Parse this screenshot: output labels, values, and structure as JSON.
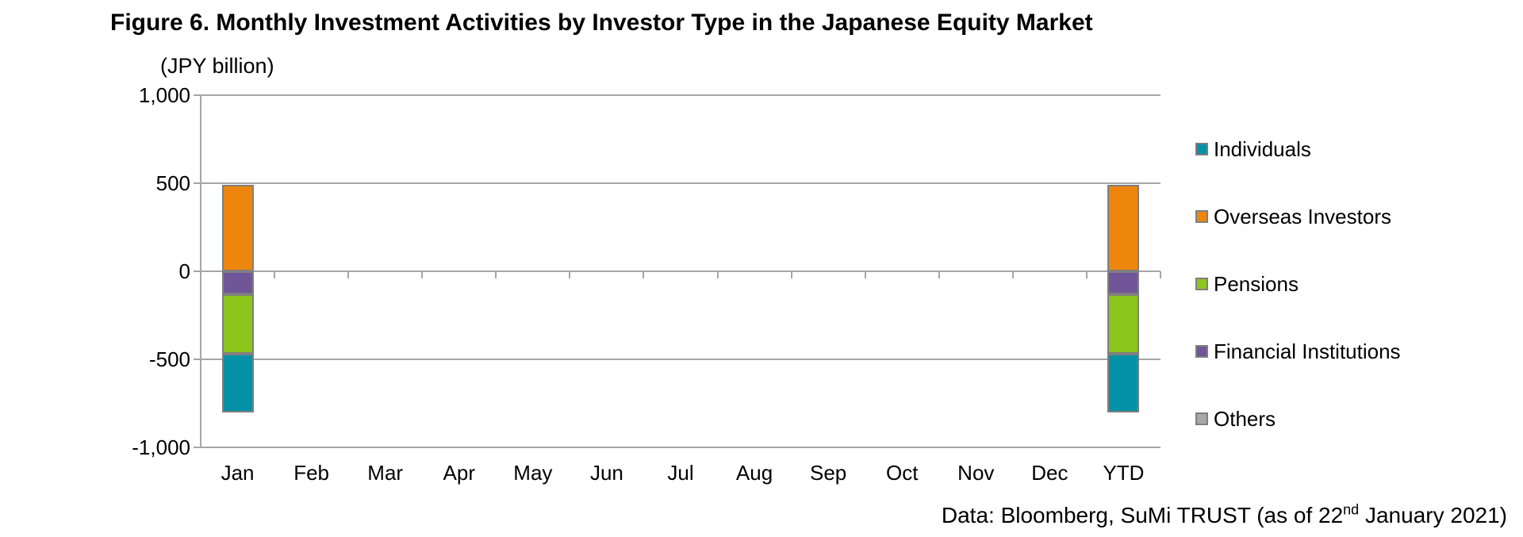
{
  "title": "Figure 6. Monthly Investment Activities by Investor Type in the Japanese Equity Market",
  "unit_label": "(JPY billion)",
  "footer": {
    "pre": "Data: Bloomberg, SuMi TRUST (as of 22",
    "sup": "nd",
    "post": " January 2021)"
  },
  "colors": {
    "individuals": "#0492A8",
    "overseas_investors": "#EE860D",
    "pensions": "#8CC61C",
    "financial_institutions": "#715599",
    "others": "#A8A8A8",
    "gridline": "#A6A6A6",
    "bar_border": "#7F7F7F"
  },
  "chart_data": {
    "type": "bar",
    "stacked": true,
    "title": "Figure 6. Monthly Investment Activities by Investor Type in the Japanese Equity Market",
    "ylabel": "(JPY billion)",
    "xlabel": "",
    "grid": true,
    "legend_position": "right",
    "ylim": [
      -1000,
      1000
    ],
    "yticks": [
      1000,
      500,
      0,
      -500,
      -1000
    ],
    "ytick_labels": [
      "1,000",
      "500",
      "0",
      "-500",
      "-1,000"
    ],
    "categories": [
      "Jan",
      "Feb",
      "Mar",
      "Apr",
      "May",
      "Jun",
      "Jul",
      "Aug",
      "Sep",
      "Oct",
      "Nov",
      "Dec",
      "YTD"
    ],
    "series": [
      {
        "name": "Individuals",
        "color": "#0492A8",
        "values": [
          -330,
          0,
          0,
          0,
          0,
          0,
          0,
          0,
          0,
          0,
          0,
          0,
          -330
        ]
      },
      {
        "name": "Overseas Investors",
        "color": "#EE860D",
        "values": [
          490,
          0,
          0,
          0,
          0,
          0,
          0,
          0,
          0,
          0,
          0,
          0,
          490
        ]
      },
      {
        "name": "Pensions",
        "color": "#8CC61C",
        "values": [
          -340,
          0,
          0,
          0,
          0,
          0,
          0,
          0,
          0,
          0,
          0,
          0,
          -340
        ]
      },
      {
        "name": "Financial Institutions",
        "color": "#715599",
        "values": [
          -130,
          0,
          0,
          0,
          0,
          0,
          0,
          0,
          0,
          0,
          0,
          0,
          -130
        ]
      },
      {
        "name": "Others",
        "color": "#A8A8A8",
        "values": [
          0,
          0,
          0,
          0,
          0,
          0,
          0,
          0,
          0,
          0,
          0,
          0,
          0
        ]
      }
    ]
  }
}
